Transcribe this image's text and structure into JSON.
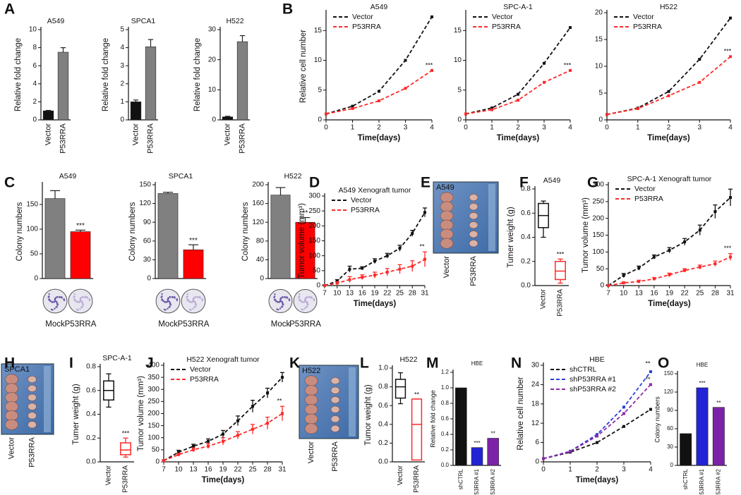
{
  "chart_data": [
    {
      "type": "bar",
      "panel": "A",
      "title": "A549",
      "ylabel": "Relative fold change",
      "categories": [
        "Vector",
        "P53RRA"
      ],
      "values": [
        1,
        7.5
      ],
      "errors": [
        0.05,
        0.5
      ],
      "colors": [
        "#111111",
        "#808080"
      ],
      "ylim": [
        0,
        10
      ],
      "yticks": [
        0,
        2,
        4,
        6,
        8,
        10
      ]
    },
    {
      "type": "bar",
      "title": "SPCA1",
      "ylabel": "Relative fold change",
      "categories": [
        "Vector",
        "P53RRA"
      ],
      "values": [
        1,
        4.05
      ],
      "errors": [
        0.1,
        0.4
      ],
      "colors": [
        "#111111",
        "#808080"
      ],
      "ylim": [
        0,
        5
      ],
      "yticks": [
        0,
        1,
        2,
        3,
        4,
        5
      ]
    },
    {
      "type": "bar",
      "title": "H522",
      "ylabel": "Relative fold change",
      "categories": [
        "Vector",
        "P53RRA"
      ],
      "values": [
        1,
        26
      ],
      "errors": [
        0.2,
        2
      ],
      "colors": [
        "#111111",
        "#808080"
      ],
      "ylim": [
        0,
        30
      ],
      "yticks": [
        0,
        10,
        20,
        30
      ]
    },
    {
      "type": "line",
      "panel": "B",
      "title": "A549",
      "xlabel": "Time(days)",
      "ylabel": "Relative cell number",
      "x": [
        0,
        1,
        2,
        3,
        4
      ],
      "xlim": [
        0,
        4
      ],
      "xticks": [
        0,
        1,
        2,
        3,
        4
      ],
      "ylim": [
        0,
        18
      ],
      "yticks": [
        0,
        5,
        10,
        15
      ],
      "series": [
        {
          "name": "Vector",
          "color": "#111111",
          "values": [
            1,
            2.3,
            4.8,
            10,
            17.3
          ]
        },
        {
          "name": "P53RRA",
          "color": "#ff2a2a",
          "values": [
            1,
            1.9,
            3.2,
            5.3,
            8.3
          ],
          "significance": "***"
        }
      ]
    },
    {
      "type": "line",
      "title": "SPC-A-1",
      "xlabel": "Time(days)",
      "x": [
        0,
        1,
        2,
        3,
        4
      ],
      "xlim": [
        0,
        4
      ],
      "xticks": [
        0,
        1,
        2,
        3,
        4
      ],
      "ylim": [
        0,
        18
      ],
      "yticks": [
        0,
        5,
        10,
        15
      ],
      "series": [
        {
          "name": "Vector",
          "color": "#111111",
          "values": [
            1,
            2,
            4.3,
            9.5,
            15.5
          ]
        },
        {
          "name": "P53RRA",
          "color": "#ff2a2a",
          "values": [
            1,
            1.7,
            3.3,
            6.3,
            8.3
          ],
          "significance": "***"
        }
      ]
    },
    {
      "type": "line",
      "title": "H522",
      "xlabel": "Time(days)",
      "x": [
        0,
        1,
        2,
        3,
        4
      ],
      "xlim": [
        0,
        4
      ],
      "xticks": [
        0,
        1,
        2,
        3,
        4
      ],
      "ylim": [
        0,
        20
      ],
      "yticks": [
        0,
        5,
        10,
        15,
        20
      ],
      "series": [
        {
          "name": "Vector",
          "color": "#111111",
          "values": [
            1,
            2.2,
            5.3,
            11.3,
            19
          ]
        },
        {
          "name": "P53RRA",
          "color": "#ff2a2a",
          "values": [
            1,
            2.1,
            4.5,
            7,
            11.8
          ],
          "significance": "***"
        }
      ]
    },
    {
      "type": "bar",
      "panel": "C",
      "title": "A549",
      "ylabel": "Colony numbers",
      "categories": [
        "Mock",
        "P53RRA"
      ],
      "values": [
        162,
        95
      ],
      "errors": [
        16,
        3
      ],
      "colors": [
        "#808080",
        "#ff0000"
      ],
      "significance": [
        null,
        "***"
      ],
      "ylim": [
        0,
        190
      ],
      "yticks": [
        0,
        50,
        100,
        150
      ]
    },
    {
      "type": "bar",
      "title": "SPCA1",
      "ylabel": "Colony numbers",
      "categories": [
        "Mock",
        "P53RRA"
      ],
      "values": [
        136,
        46
      ],
      "errors": [
        2,
        8
      ],
      "colors": [
        "#808080",
        "#ff0000"
      ],
      "significance": [
        null,
        "***"
      ],
      "ylim": [
        0,
        150
      ],
      "yticks": [
        0,
        30,
        60,
        90,
        120,
        150
      ]
    },
    {
      "type": "bar",
      "title": "H522",
      "ylabel": "Colony numbers",
      "categories": [
        "Mock",
        "P53RRA"
      ],
      "values": [
        178,
        120
      ],
      "errors": [
        16,
        10
      ],
      "colors": [
        "#808080",
        "#ff0000"
      ],
      "significance": [
        null,
        "**"
      ],
      "ylim": [
        0,
        200
      ],
      "yticks": [
        0,
        40,
        80,
        120,
        160,
        200
      ]
    },
    {
      "type": "line",
      "panel": "D",
      "title": "A549 Xenograft tumor",
      "xlabel": "Time(days)",
      "ylabel": "Tumor volume (mm³)",
      "x": [
        7,
        10,
        13,
        16,
        19,
        22,
        25,
        28,
        31
      ],
      "xlim": [
        7,
        31
      ],
      "xticks": [
        7,
        10,
        13,
        16,
        19,
        22,
        25,
        28,
        31
      ],
      "ylim": [
        0,
        300
      ],
      "yticks": [
        0,
        50,
        100,
        150,
        200,
        250,
        300
      ],
      "series": [
        {
          "name": "Vector",
          "color": "#111111",
          "values": [
            0,
            15,
            55,
            58,
            82,
            100,
            125,
            175,
            245
          ],
          "errors": [
            3,
            5,
            10,
            5,
            8,
            8,
            10,
            10,
            15
          ]
        },
        {
          "name": "P53RRA",
          "color": "#ff2a2a",
          "values": [
            0,
            8,
            20,
            28,
            35,
            45,
            55,
            65,
            88
          ],
          "errors": [
            2,
            5,
            10,
            8,
            10,
            12,
            15,
            18,
            25
          ],
          "significance": "**"
        }
      ]
    },
    {
      "type": "image",
      "panel": "E",
      "title": "A549",
      "categories": [
        "Vector",
        "P53RRA"
      ]
    },
    {
      "type": "box",
      "panel": "F",
      "title": "A549",
      "ylabel": "Tumer weight (g)",
      "categories": [
        "Vector",
        "P53RRA"
      ],
      "colors": [
        "#111111",
        "#ff2a2a"
      ],
      "boxes": [
        {
          "min": 0.4,
          "q1": 0.48,
          "median": 0.58,
          "q3": 0.68,
          "max": 0.7
        },
        {
          "min": 0.02,
          "q1": 0.05,
          "median": 0.12,
          "q3": 0.2,
          "max": 0.22
        }
      ],
      "significance": [
        null,
        "***"
      ],
      "ylim": [
        0,
        0.8
      ],
      "yticks": [
        {
          "value": 0,
          "label": "0.0"
        },
        0.2,
        0.4,
        0.6,
        0.8
      ]
    },
    {
      "type": "line",
      "panel": "G",
      "title": "SPC-A-1 Xenograft tumor",
      "xlabel": "Time(days)",
      "ylabel": "Tumor volume (mm³)",
      "x": [
        7,
        10,
        13,
        16,
        19,
        22,
        25,
        28,
        31
      ],
      "xlim": [
        7,
        31
      ],
      "xticks": [
        7,
        10,
        13,
        16,
        19,
        22,
        25,
        28,
        31
      ],
      "ylim": [
        0,
        300
      ],
      "yticks": [
        0,
        50,
        100,
        150,
        200,
        250,
        300
      ],
      "series": [
        {
          "name": "Vector",
          "color": "#111111",
          "values": [
            0,
            30,
            52,
            85,
            105,
            130,
            165,
            220,
            262
          ],
          "errors": [
            3,
            6,
            6,
            6,
            8,
            10,
            15,
            20,
            25
          ]
        },
        {
          "name": "P53RRA",
          "color": "#ff2a2a",
          "values": [
            0,
            8,
            12,
            20,
            32,
            45,
            55,
            65,
            85
          ],
          "errors": [
            2,
            3,
            4,
            4,
            5,
            5,
            6,
            8,
            10
          ],
          "significance": "***"
        }
      ]
    },
    {
      "type": "image",
      "panel": "H",
      "title": "SPCA1",
      "categories": [
        "Vector",
        "P53RRA"
      ]
    },
    {
      "type": "box",
      "panel": "I",
      "title": "SPC-A-1",
      "ylabel": "Tumer weight (g)",
      "categories": [
        "Vector",
        "P53RRA"
      ],
      "colors": [
        "#111111",
        "#ff2a2a"
      ],
      "boxes": [
        {
          "min": 0.46,
          "q1": 0.52,
          "median": 0.6,
          "q3": 0.68,
          "max": 0.74
        },
        {
          "min": 0.04,
          "q1": 0.06,
          "median": 0.1,
          "q3": 0.16,
          "max": 0.2
        }
      ],
      "significance": [
        null,
        "***"
      ],
      "ylim": [
        0,
        0.8
      ],
      "yticks": [
        {
          "value": 0,
          "label": "0.0"
        },
        0.2,
        0.4,
        0.6,
        0.8
      ]
    },
    {
      "type": "line",
      "panel": "J",
      "title": "H522 Xenograft tumor",
      "xlabel": "Time(days)",
      "ylabel": "Tumor volume (mm³)",
      "x": [
        7,
        10,
        13,
        16,
        19,
        22,
        25,
        28,
        31
      ],
      "xlim": [
        7,
        31
      ],
      "xticks": [
        7,
        10,
        13,
        16,
        19,
        22,
        25,
        28,
        31
      ],
      "ylim": [
        0,
        400
      ],
      "yticks": [
        0,
        50,
        100,
        150,
        200,
        250,
        300,
        350,
        400
      ],
      "series": [
        {
          "name": "Vector",
          "color": "#111111",
          "values": [
            5,
            40,
            65,
            85,
            115,
            170,
            230,
            285,
            350
          ],
          "errors": [
            3,
            8,
            8,
            10,
            15,
            20,
            25,
            20,
            20
          ]
        },
        {
          "name": "P53RRA",
          "color": "#ff2a2a",
          "values": [
            5,
            30,
            50,
            65,
            85,
            110,
            135,
            160,
            200
          ],
          "errors": [
            3,
            6,
            8,
            10,
            15,
            15,
            20,
            25,
            30
          ],
          "significance": "**"
        }
      ]
    },
    {
      "type": "image",
      "panel": "K",
      "title": "H522",
      "categories": [
        "Vector",
        "P53RRA"
      ]
    },
    {
      "type": "box",
      "panel": "L",
      "title": "H522",
      "ylabel": "Tumor weight (g)",
      "categories": [
        "Vector",
        "P53RRA"
      ],
      "colors": [
        "#111111",
        "#ff2a2a"
      ],
      "boxes": [
        {
          "min": 0.62,
          "q1": 0.68,
          "median": 0.8,
          "q3": 0.88,
          "max": 0.95
        },
        {
          "min": 0.02,
          "q1": 0.02,
          "median": 0.4,
          "q3": 0.67,
          "max": 0.67
        }
      ],
      "significance": [
        null,
        "**"
      ],
      "ylim": [
        0,
        1
      ],
      "yticks": [
        {
          "value": 0,
          "label": "0.0"
        },
        0.2,
        0.4,
        0.6,
        0.8,
        {
          "value": 1,
          "label": "1.0"
        }
      ]
    },
    {
      "type": "bar",
      "panel": "M",
      "title": "HBE",
      "ylabel": "Relative fold change",
      "categories": [
        "shCTRL",
        "shP53RRA #1",
        "shP53RRA #2"
      ],
      "values": [
        1,
        0.23,
        0.35
      ],
      "colors": [
        "#111111",
        "#2323d6",
        "#7b22a8"
      ],
      "significance": [
        null,
        "***",
        "**"
      ],
      "ylim": [
        0,
        1.2
      ],
      "yticks": [
        {
          "value": 0,
          "label": "0.0"
        },
        0.2,
        0.4,
        0.6,
        0.8,
        {
          "value": 1,
          "label": "1.0"
        },
        1.2
      ]
    },
    {
      "type": "line",
      "panel": "N",
      "title": "HBE",
      "xlabel": "Time(days)",
      "ylabel": "Relative cell number",
      "x": [
        0,
        1,
        2,
        3,
        4
      ],
      "xlim": [
        0,
        4
      ],
      "xticks": [
        0,
        1,
        2,
        3,
        4
      ],
      "ylim": [
        0,
        30
      ],
      "yticks": [
        0,
        6,
        12,
        18,
        24,
        30
      ],
      "series": [
        {
          "name": "shCTRL",
          "color": "#111111",
          "values": [
            1,
            3,
            6,
            11,
            16.3
          ]
        },
        {
          "name": "shP53RRA #1",
          "color": "#2a3fd8",
          "values": [
            1,
            3.3,
            8.5,
            17,
            28
          ],
          "significance": "**"
        },
        {
          "name": "shP53RRA #2",
          "color": "#8a2aa8",
          "values": [
            1,
            3.2,
            8,
            15,
            24
          ],
          "significance": "**"
        }
      ]
    },
    {
      "type": "bar",
      "panel": "O",
      "title": "HBE",
      "ylabel": "Colony numbers",
      "categories": [
        "shCTRL",
        "shP53RRA #1",
        "shP53RRA #2"
      ],
      "values": [
        52,
        127,
        95
      ],
      "colors": [
        "#111111",
        "#2323d6",
        "#7b22a8"
      ],
      "significance": [
        null,
        "***",
        "**"
      ],
      "ylim": [
        0,
        150
      ],
      "yticks": [
        0,
        30,
        60,
        90,
        120,
        150
      ]
    }
  ]
}
